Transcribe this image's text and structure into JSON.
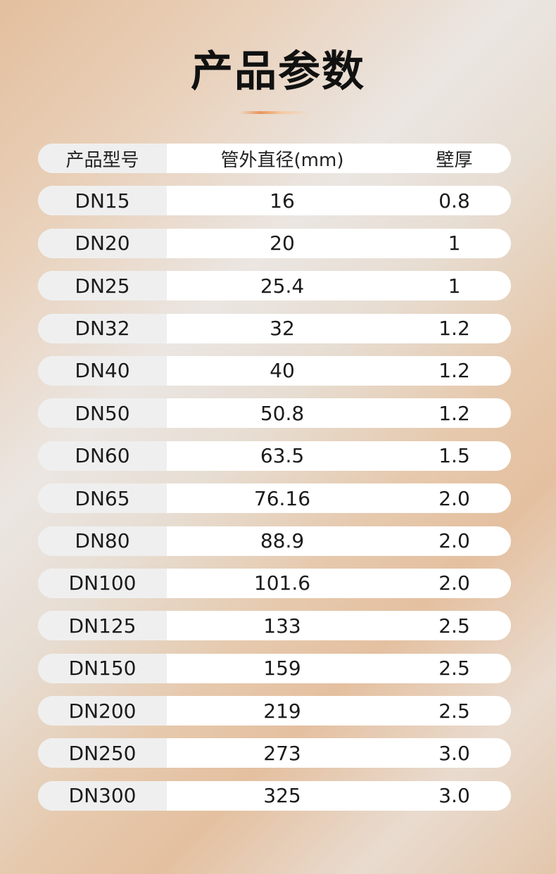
{
  "page": {
    "title": "产品参数"
  },
  "table": {
    "headers": {
      "model": "产品型号",
      "outer_diameter": "管外直径(mm)",
      "wall_thickness": "壁厚"
    },
    "rows": [
      {
        "model": "DN15",
        "outer_diameter": "16",
        "wall_thickness": "0.8"
      },
      {
        "model": "DN20",
        "outer_diameter": "20",
        "wall_thickness": "1"
      },
      {
        "model": "DN25",
        "outer_diameter": "25.4",
        "wall_thickness": "1"
      },
      {
        "model": "DN32",
        "outer_diameter": "32",
        "wall_thickness": "1.2"
      },
      {
        "model": "DN40",
        "outer_diameter": "40",
        "wall_thickness": "1.2"
      },
      {
        "model": "DN50",
        "outer_diameter": "50.8",
        "wall_thickness": "1.2"
      },
      {
        "model": "DN60",
        "outer_diameter": "63.5",
        "wall_thickness": "1.5"
      },
      {
        "model": "DN65",
        "outer_diameter": "76.16",
        "wall_thickness": "2.0"
      },
      {
        "model": "DN80",
        "outer_diameter": "88.9",
        "wall_thickness": "2.0"
      },
      {
        "model": "DN100",
        "outer_diameter": "101.6",
        "wall_thickness": "2.0"
      },
      {
        "model": "DN125",
        "outer_diameter": "133",
        "wall_thickness": "2.5"
      },
      {
        "model": "DN150",
        "outer_diameter": "159",
        "wall_thickness": "2.5"
      },
      {
        "model": "DN200",
        "outer_diameter": "219",
        "wall_thickness": "2.5"
      },
      {
        "model": "DN250",
        "outer_diameter": "273",
        "wall_thickness": "3.0"
      },
      {
        "model": "DN300",
        "outer_diameter": "325",
        "wall_thickness": "3.0"
      }
    ]
  }
}
